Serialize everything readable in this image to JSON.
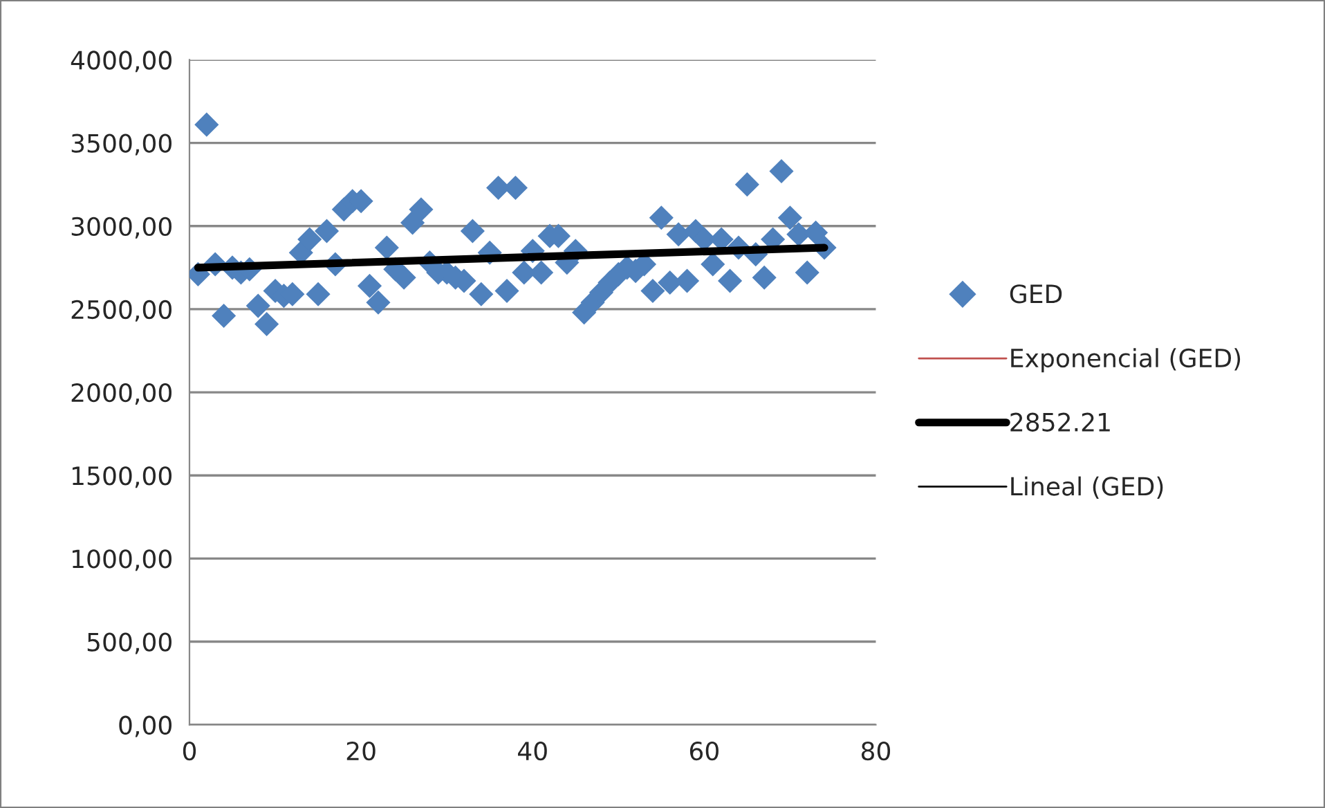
{
  "chart_data": {
    "type": "scatter",
    "xlim": [
      0,
      80
    ],
    "xticks": [
      0,
      20,
      40,
      60,
      80
    ],
    "ylim": [
      0,
      4000
    ],
    "yticks": [
      {
        "value": 0,
        "label": "0,00"
      },
      {
        "value": 500,
        "label": "500,00"
      },
      {
        "value": 1000,
        "label": "1000,00"
      },
      {
        "value": 1500,
        "label": "1500,00"
      },
      {
        "value": 2000,
        "label": "2000,00"
      },
      {
        "value": 2500,
        "label": "2500,00"
      },
      {
        "value": 3000,
        "label": "3000,00"
      },
      {
        "value": 3500,
        "label": "3500,00"
      },
      {
        "value": 4000,
        "label": "4000,00"
      }
    ],
    "grid": "y",
    "legend": "right",
    "x": [
      1,
      2,
      3,
      4,
      5,
      6,
      7,
      8,
      9,
      10,
      11,
      12,
      13,
      14,
      15,
      16,
      17,
      18,
      19,
      20,
      21,
      22,
      23,
      24,
      25,
      26,
      27,
      28,
      29,
      30,
      31,
      32,
      33,
      34,
      35,
      36,
      37,
      38,
      39,
      40,
      41,
      42,
      43,
      44,
      45,
      46,
      47,
      48,
      49,
      50,
      51,
      52,
      53,
      54,
      55,
      56,
      57,
      58,
      59,
      60,
      61,
      62,
      63,
      64,
      65,
      66,
      67,
      68,
      69,
      70,
      71,
      72,
      73,
      74
    ],
    "series": [
      {
        "name": "GED",
        "marker": "diamond",
        "color": "#4f81bd",
        "values": [
          2710,
          3610,
          2770,
          2460,
          2750,
          2720,
          2740,
          2520,
          2410,
          2610,
          2580,
          2590,
          2840,
          2920,
          2590,
          2970,
          2770,
          3100,
          3150,
          3150,
          2640,
          2540,
          2870,
          2740,
          2690,
          3020,
          3100,
          2780,
          2720,
          2720,
          2690,
          2670,
          2970,
          2590,
          2840,
          3230,
          2610,
          3230,
          2720,
          2850,
          2720,
          2940,
          2940,
          2780,
          2850,
          2480,
          2540,
          2600,
          2660,
          2710,
          2750,
          2730,
          2770,
          2610,
          3050,
          2660,
          2950,
          2670,
          2970,
          2920,
          2770,
          2920,
          2670,
          2870,
          3250,
          2830,
          2690,
          2920,
          3330,
          3050,
          2950,
          2720,
          2960,
          2870
        ]
      },
      {
        "name": "Exponencial (GED)",
        "type": "line",
        "marker": "none",
        "color": "#c0504d",
        "values": [
          null,
          null,
          null,
          null,
          null,
          null,
          null,
          null,
          null,
          null,
          null,
          null,
          null,
          null,
          null,
          null,
          null,
          null,
          null,
          null,
          null,
          null,
          null,
          null,
          null,
          null,
          null,
          null,
          null,
          null,
          null,
          null,
          null,
          null,
          null,
          null,
          null,
          null,
          null,
          null,
          null,
          null,
          null,
          null,
          null,
          null,
          null,
          null,
          null,
          null,
          null,
          null,
          null,
          null,
          null,
          null,
          null,
          null,
          null,
          null,
          null,
          null,
          null,
          null,
          null,
          null,
          null,
          null,
          null,
          null,
          null,
          null,
          null,
          null
        ]
      },
      {
        "name": "2852.21",
        "type": "line",
        "marker": "none",
        "color": "#000000",
        "x": [
          1,
          74
        ],
        "values": [
          2750,
          2870
        ]
      },
      {
        "name": "Lineal (GED)",
        "type": "line",
        "marker": "none",
        "color": "#000000",
        "values": [
          null,
          null,
          null,
          null,
          null,
          null,
          null,
          null,
          null,
          null,
          null,
          null,
          null,
          null,
          null,
          null,
          null,
          null,
          null,
          null,
          null,
          null,
          null,
          null,
          null,
          null,
          null,
          null,
          null,
          null,
          null,
          null,
          null,
          null,
          null,
          null,
          null,
          null,
          null,
          null,
          null,
          null,
          null,
          null,
          null,
          null,
          null,
          null,
          null,
          null,
          null,
          null,
          null,
          null,
          null,
          null,
          null,
          null,
          null,
          null,
          null,
          null,
          null,
          null,
          null,
          null,
          null,
          null,
          null,
          null,
          null,
          null,
          null,
          null
        ]
      }
    ]
  }
}
